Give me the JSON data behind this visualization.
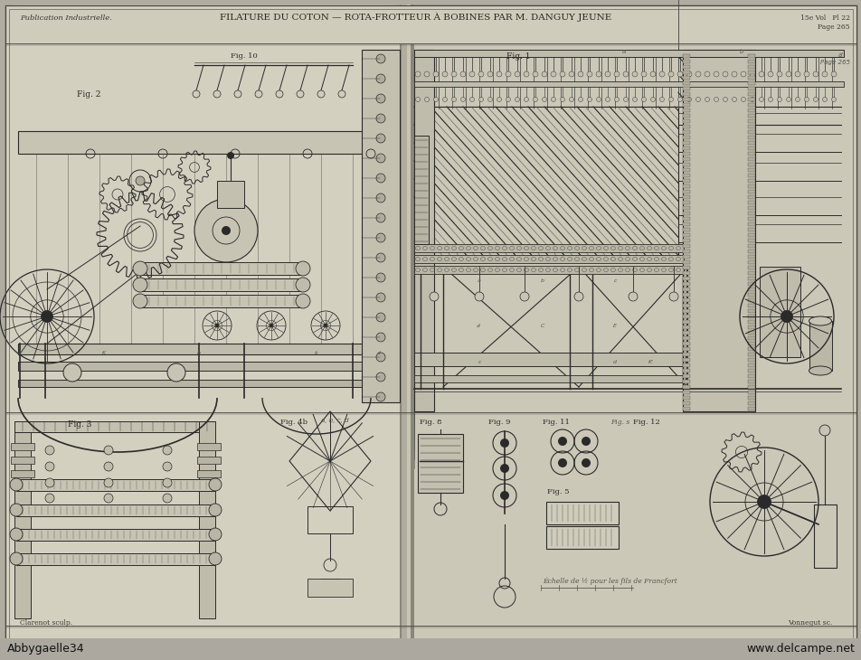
{
  "title": "FILATURE DU COTON — ROTA-FROTTEUR À BOBINES PAR M. DANGUY JEUNE",
  "pub_left": "Publication Industrielle.",
  "watermark_left": "Abbygaelle34",
  "watermark_right": "www.delcampe.net",
  "bg_outer": "#b8b4a8",
  "bg_left_page": "#d8d4c4",
  "bg_right_page": "#ccc8b8",
  "bg_header": "#c8c4b2",
  "fold_shadow": "#a8a498",
  "fold_highlight": "#e0dcd0",
  "line_color": "#2a2a2a",
  "dim_line_color": "#555550",
  "page_num": "15e Vol   Pl 22",
  "page_ref": "Page 265",
  "bottom_left": "Clarenot sculp.",
  "bottom_right": "Vonnegut sc."
}
